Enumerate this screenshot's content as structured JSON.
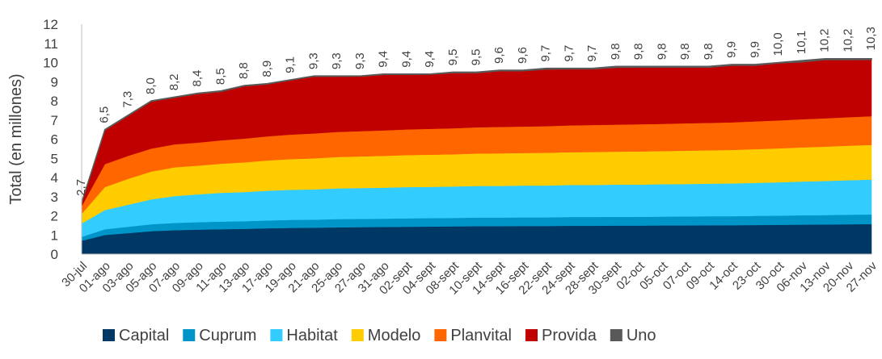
{
  "chart_data": {
    "type": "area",
    "stacked": true,
    "ylabel": "Total (en millones)",
    "ylim": [
      0,
      12
    ],
    "yticks": [
      0,
      1,
      2,
      3,
      4,
      5,
      6,
      7,
      8,
      9,
      10,
      11,
      12
    ],
    "x_tick_labels": [
      "30-jul",
      "01-ago",
      "03-ago",
      "05-ago",
      "07-ago",
      "09-ago",
      "11-ago",
      "13-ago",
      "17-ago",
      "19-ago",
      "21-ago",
      "25-ago",
      "27-ago",
      "31-ago",
      "02-sept",
      "04-sept",
      "08-sept",
      "10-sept",
      "14-sept",
      "16-sept",
      "22-sept",
      "24-sept",
      "28-sept",
      "30-sept",
      "02-oct",
      "05-oct",
      "07-oct",
      "09-oct",
      "14-oct",
      "23-oct",
      "30-oct",
      "06-nov",
      "13-nov",
      "20-nov",
      "27-nov"
    ],
    "grid": false,
    "legend_position": "bottom",
    "series": [
      {
        "name": "Capital",
        "color": "#003865",
        "values": [
          0.7,
          1.0,
          1.1,
          1.2,
          1.25,
          1.28,
          1.3,
          1.32,
          1.35,
          1.37,
          1.38,
          1.4,
          1.41,
          1.42,
          1.43,
          1.44,
          1.45,
          1.46,
          1.46,
          1.47,
          1.47,
          1.48,
          1.48,
          1.49,
          1.49,
          1.5,
          1.5,
          1.51,
          1.51,
          1.52,
          1.53,
          1.54,
          1.55,
          1.56,
          1.57
        ]
      },
      {
        "name": "Cuprum",
        "color": "#0095C8",
        "values": [
          0.2,
          0.3,
          0.33,
          0.36,
          0.38,
          0.39,
          0.4,
          0.4,
          0.41,
          0.42,
          0.42,
          0.43,
          0.43,
          0.43,
          0.44,
          0.44,
          0.44,
          0.45,
          0.45,
          0.45,
          0.45,
          0.46,
          0.46,
          0.46,
          0.46,
          0.46,
          0.47,
          0.47,
          0.47,
          0.48,
          0.48,
          0.49,
          0.49,
          0.5,
          0.5
        ]
      },
      {
        "name": "Habitat",
        "color": "#33CCFF",
        "values": [
          0.7,
          1.0,
          1.15,
          1.3,
          1.4,
          1.45,
          1.5,
          1.52,
          1.55,
          1.57,
          1.58,
          1.6,
          1.61,
          1.62,
          1.63,
          1.63,
          1.64,
          1.65,
          1.65,
          1.66,
          1.66,
          1.67,
          1.67,
          1.68,
          1.68,
          1.69,
          1.69,
          1.7,
          1.71,
          1.72,
          1.74,
          1.76,
          1.78,
          1.8,
          1.82
        ]
      },
      {
        "name": "Modelo",
        "color": "#FFCC00",
        "values": [
          0.5,
          1.2,
          1.35,
          1.45,
          1.5,
          1.5,
          1.52,
          1.55,
          1.58,
          1.6,
          1.62,
          1.64,
          1.65,
          1.66,
          1.67,
          1.68,
          1.68,
          1.69,
          1.7,
          1.7,
          1.71,
          1.71,
          1.72,
          1.72,
          1.73,
          1.73,
          1.74,
          1.74,
          1.75,
          1.76,
          1.77,
          1.78,
          1.79,
          1.8,
          1.81
        ]
      },
      {
        "name": "Planvital",
        "color": "#FF6600",
        "values": [
          0.4,
          1.2,
          1.2,
          1.2,
          1.2,
          1.2,
          1.22,
          1.24,
          1.26,
          1.28,
          1.3,
          1.31,
          1.32,
          1.33,
          1.34,
          1.35,
          1.36,
          1.37,
          1.38,
          1.38,
          1.39,
          1.4,
          1.41,
          1.41,
          1.42,
          1.42,
          1.43,
          1.43,
          1.44,
          1.45,
          1.46,
          1.47,
          1.48,
          1.49,
          1.5
        ]
      },
      {
        "name": "Provida",
        "color": "#C00000",
        "values": [
          0.19,
          1.78,
          2.1,
          2.47,
          2.45,
          2.56,
          2.55,
          2.75,
          2.73,
          2.85,
          2.98,
          2.9,
          2.87,
          2.92,
          2.87,
          2.85,
          2.9,
          2.85,
          2.93,
          2.91,
          2.98,
          2.95,
          2.93,
          2.99,
          2.98,
          2.96,
          2.93,
          2.91,
          2.98,
          2.93,
          3.0,
          2.99,
          3.06,
          3.0,
          2.96
        ]
      },
      {
        "name": "Uno",
        "color": "#595959",
        "values": [
          0.01,
          0.02,
          0.02,
          0.02,
          0.02,
          0.02,
          0.03,
          0.02,
          0.02,
          0.01,
          0.02,
          0.02,
          0.01,
          0.02,
          0.02,
          0.01,
          0.03,
          0.03,
          0.03,
          0.03,
          0.04,
          0.03,
          0.03,
          0.05,
          0.04,
          0.04,
          0.04,
          0.04,
          0.04,
          0.04,
          0.02,
          0.07,
          0.05,
          0.05,
          0.04
        ]
      }
    ],
    "total_labels": [
      "2,7",
      "6,5",
      "7,3",
      "8,0",
      "8,2",
      "8,4",
      "8,5",
      "8,8",
      "8,9",
      "9,1",
      "9,3",
      "9,3",
      "9,3",
      "9,4",
      "9,4",
      "9,4",
      "9,5",
      "9,5",
      "9,6",
      "9,6",
      "9,7",
      "9,7",
      "9,7",
      "9,8",
      "9,8",
      "9,8",
      "9,8",
      "9,8",
      "9,9",
      "9,9",
      "10,0",
      "10,1",
      "10,2",
      "10,2",
      "10,3"
    ],
    "total_values": [
      2.7,
      6.5,
      7.3,
      8.0,
      8.2,
      8.4,
      8.5,
      8.8,
      8.9,
      9.1,
      9.3,
      9.3,
      9.3,
      9.4,
      9.4,
      9.4,
      9.5,
      9.5,
      9.6,
      9.6,
      9.7,
      9.7,
      9.7,
      9.8,
      9.8,
      9.8,
      9.8,
      9.8,
      9.9,
      9.9,
      10.0,
      10.1,
      10.2,
      10.2,
      10.3
    ]
  }
}
